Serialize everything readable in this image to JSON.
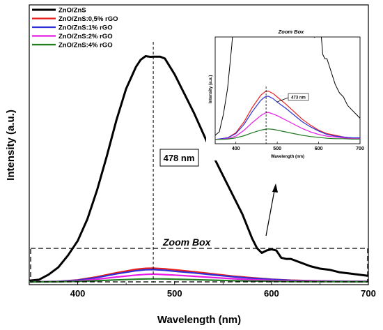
{
  "chart_data": [
    {
      "type": "line",
      "title": "",
      "xlabel": "Wavelength (nm)",
      "ylabel": "Intensity (a.u.)",
      "xlim": [
        350,
        700
      ],
      "ylim": [
        0,
        100
      ],
      "xticks": [
        "400",
        "500",
        "600",
        "700"
      ],
      "yticks_shown": false,
      "grid": false,
      "legend": "top-left",
      "series": [
        {
          "name": "ZnO/ZnS",
          "color": "#000000",
          "x": [
            350,
            360,
            370,
            380,
            390,
            400,
            410,
            420,
            430,
            440,
            450,
            460,
            465,
            470,
            475,
            478,
            485,
            490,
            500,
            510,
            520,
            530,
            540,
            550,
            560,
            570,
            580,
            585,
            590,
            595,
            600,
            605,
            610,
            615,
            620,
            630,
            640,
            650,
            660,
            670,
            680,
            690,
            700
          ],
          "y": [
            0.5,
            0.9,
            3,
            6,
            11,
            17,
            26,
            38,
            52,
            67,
            80,
            89,
            92,
            93.5,
            93.2,
            93.3,
            93.3,
            92.5,
            86,
            78,
            70,
            61,
            52,
            44,
            36,
            28,
            18,
            14,
            12,
            13,
            13.5,
            13,
            10,
            9.5,
            9.5,
            8,
            6.5,
            5.5,
            5,
            4,
            3.5,
            3,
            2.5
          ]
        },
        {
          "name": "ZnO/ZnS:0,5% rGO",
          "color": "#e8201c",
          "x": [
            350,
            380,
            400,
            420,
            440,
            460,
            470,
            478,
            490,
            500,
            520,
            540,
            560,
            580,
            600,
            620,
            640,
            660,
            680,
            700
          ],
          "y": [
            0,
            0.2,
            0.8,
            2.1,
            3.8,
            5.2,
            5.6,
            5.7,
            5.4,
            5.0,
            4.2,
            3.3,
            2.4,
            1.7,
            1.1,
            0.7,
            0.5,
            0.3,
            0.2,
            0.2
          ]
        },
        {
          "name": "ZnO/ZnS:1% rGO",
          "color": "#2e2ed6",
          "x": [
            350,
            380,
            400,
            420,
            440,
            460,
            470,
            478,
            490,
            500,
            520,
            540,
            560,
            580,
            600,
            620,
            640,
            660,
            680,
            700
          ],
          "y": [
            0,
            0.2,
            0.7,
            1.8,
            3.3,
            4.6,
            5.0,
            5.1,
            4.8,
            4.4,
            3.7,
            2.9,
            2.1,
            1.5,
            1.0,
            0.6,
            0.4,
            0.3,
            0.2,
            0.2
          ]
        },
        {
          "name": "ZnO/ZnS:2% rGO",
          "color": "#e619e6",
          "x": [
            350,
            380,
            400,
            420,
            440,
            460,
            470,
            478,
            490,
            500,
            520,
            540,
            560,
            580,
            600,
            620,
            640,
            660,
            680,
            700
          ],
          "y": [
            0,
            0.1,
            0.4,
            1.1,
            2.0,
            2.8,
            3.1,
            3.2,
            3.0,
            2.8,
            2.3,
            1.8,
            1.3,
            0.9,
            0.6,
            0.4,
            0.3,
            0.2,
            0.1,
            0.1
          ]
        },
        {
          "name": "ZnO/ZnS:4% rGO",
          "color": "#237a23",
          "x": [
            350,
            380,
            400,
            420,
            440,
            460,
            470,
            478,
            490,
            500,
            520,
            540,
            560,
            580,
            600,
            620,
            640,
            660,
            680,
            700
          ],
          "y": [
            0,
            0.05,
            0.2,
            0.45,
            0.8,
            1.1,
            1.2,
            1.25,
            1.2,
            1.1,
            0.9,
            0.7,
            0.5,
            0.35,
            0.25,
            0.15,
            0.1,
            0.1,
            0.05,
            0.05
          ]
        }
      ],
      "annotations": {
        "peak_label": "478 nm",
        "peak_x": 478,
        "zoom_label": "Zoom Box"
      }
    },
    {
      "type": "line",
      "title": "Zoom Box",
      "xlabel": "Wavelength (nm)",
      "ylabel": "Intensity (a.u.)",
      "xlim": [
        350,
        700
      ],
      "xticks": [
        "400",
        "500",
        "600",
        "700"
      ],
      "annotation_label": "473 nm",
      "annotation_x": 473
    }
  ]
}
